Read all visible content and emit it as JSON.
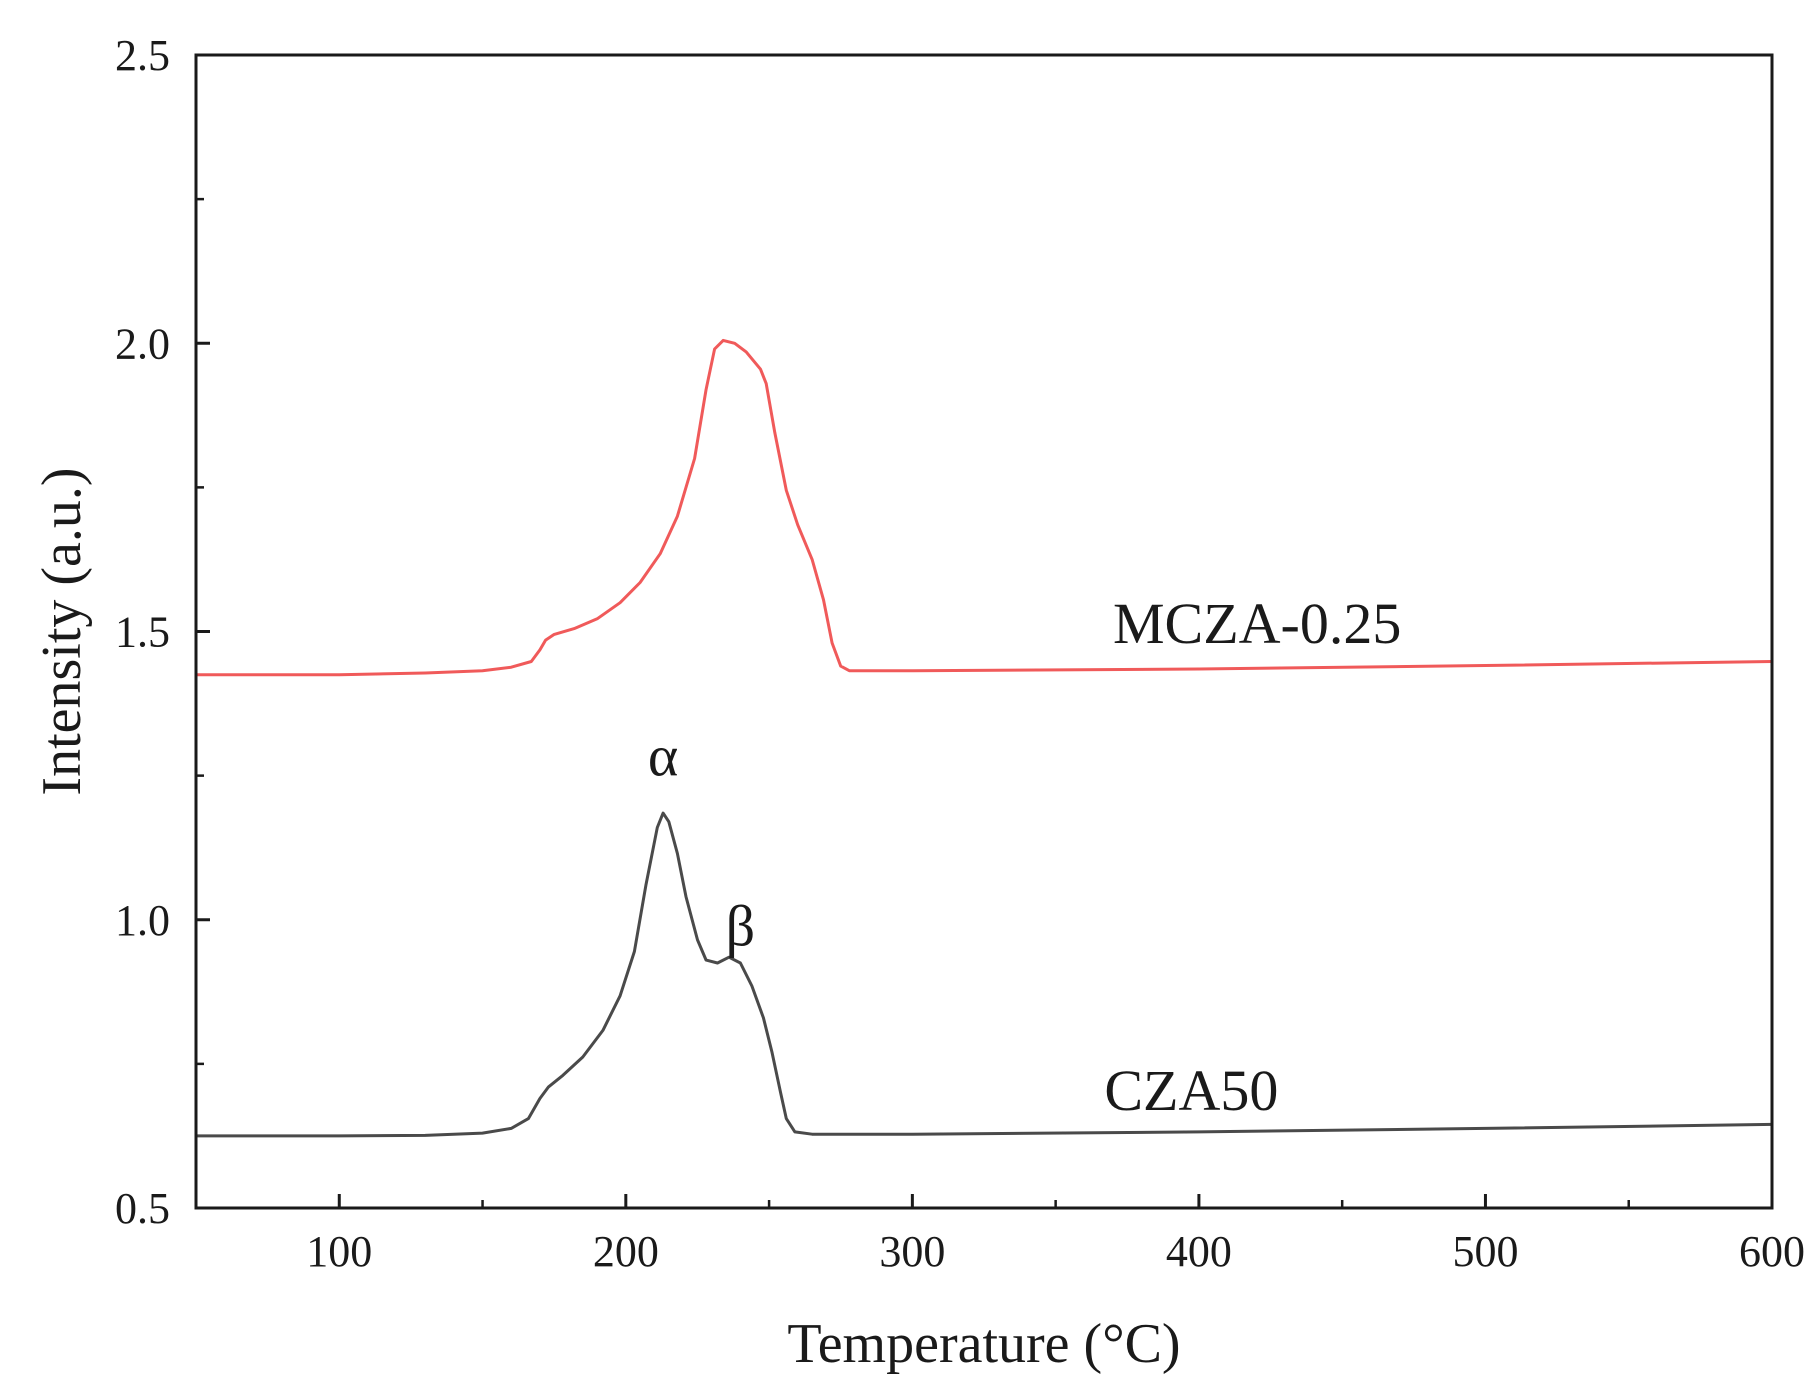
{
  "chart_data": {
    "type": "line",
    "title": "",
    "xlabel": "Temperature (°C)",
    "ylabel": "Intensity (a.u.)",
    "xlim": [
      50,
      600
    ],
    "ylim": [
      0.5,
      2.5
    ],
    "x_major_ticks": [
      100,
      200,
      300,
      400,
      500,
      600
    ],
    "x_minor_ticks": [
      50,
      150,
      250,
      350,
      450,
      550
    ],
    "x_tick_labels": [
      "100",
      "200",
      "300",
      "400",
      "500",
      "600"
    ],
    "y_major_ticks": [
      0.5,
      1.0,
      1.5,
      2.0,
      2.5
    ],
    "y_minor_ticks": [
      0.75,
      1.25,
      1.75,
      2.25
    ],
    "y_tick_labels": [
      "0.5",
      "1.0",
      "1.5",
      "2.0",
      "2.5"
    ],
    "grid": false,
    "legend": "none",
    "series": [
      {
        "name": "MCZA-0.25",
        "label": "MCZA-0.25",
        "label_anchor": [
          370,
          1.48
        ],
        "color": "#f05a5a",
        "points": [
          [
            50,
            1.425
          ],
          [
            100,
            1.425
          ],
          [
            130,
            1.428
          ],
          [
            150,
            1.432
          ],
          [
            160,
            1.438
          ],
          [
            167,
            1.448
          ],
          [
            170,
            1.468
          ],
          [
            172,
            1.485
          ],
          [
            175,
            1.495
          ],
          [
            182,
            1.505
          ],
          [
            190,
            1.522
          ],
          [
            198,
            1.55
          ],
          [
            205,
            1.585
          ],
          [
            212,
            1.635
          ],
          [
            218,
            1.7
          ],
          [
            224,
            1.8
          ],
          [
            228,
            1.92
          ],
          [
            231,
            1.99
          ],
          [
            234,
            2.005
          ],
          [
            238,
            2.0
          ],
          [
            242,
            1.985
          ],
          [
            247,
            1.955
          ],
          [
            249,
            1.93
          ],
          [
            252,
            1.845
          ],
          [
            256,
            1.745
          ],
          [
            260,
            1.685
          ],
          [
            265,
            1.625
          ],
          [
            269,
            1.555
          ],
          [
            272,
            1.48
          ],
          [
            275,
            1.44
          ],
          [
            278,
            1.432
          ],
          [
            300,
            1.432
          ],
          [
            400,
            1.435
          ],
          [
            500,
            1.441
          ],
          [
            600,
            1.448
          ]
        ]
      },
      {
        "name": "CZA50",
        "label": "CZA50",
        "label_anchor": [
          367,
          0.67
        ],
        "color": "#4a4a4a",
        "points": [
          [
            50,
            0.625
          ],
          [
            100,
            0.625
          ],
          [
            130,
            0.626
          ],
          [
            150,
            0.63
          ],
          [
            160,
            0.638
          ],
          [
            166,
            0.655
          ],
          [
            170,
            0.69
          ],
          [
            173,
            0.71
          ],
          [
            178,
            0.73
          ],
          [
            185,
            0.762
          ],
          [
            192,
            0.808
          ],
          [
            198,
            0.868
          ],
          [
            203,
            0.945
          ],
          [
            207,
            1.06
          ],
          [
            211,
            1.16
          ],
          [
            213,
            1.185
          ],
          [
            215,
            1.17
          ],
          [
            218,
            1.115
          ],
          [
            221,
            1.04
          ],
          [
            225,
            0.965
          ],
          [
            228,
            0.93
          ],
          [
            232,
            0.925
          ],
          [
            236,
            0.935
          ],
          [
            240,
            0.925
          ],
          [
            244,
            0.885
          ],
          [
            248,
            0.83
          ],
          [
            251,
            0.77
          ],
          [
            254,
            0.7
          ],
          [
            256,
            0.655
          ],
          [
            259,
            0.632
          ],
          [
            265,
            0.628
          ],
          [
            300,
            0.628
          ],
          [
            400,
            0.632
          ],
          [
            500,
            0.638
          ],
          [
            600,
            0.645
          ]
        ]
      }
    ],
    "annotations": [
      {
        "text": "α",
        "x": 213,
        "y": 1.25
      },
      {
        "text": "β",
        "x": 240,
        "y": 0.955
      }
    ]
  }
}
